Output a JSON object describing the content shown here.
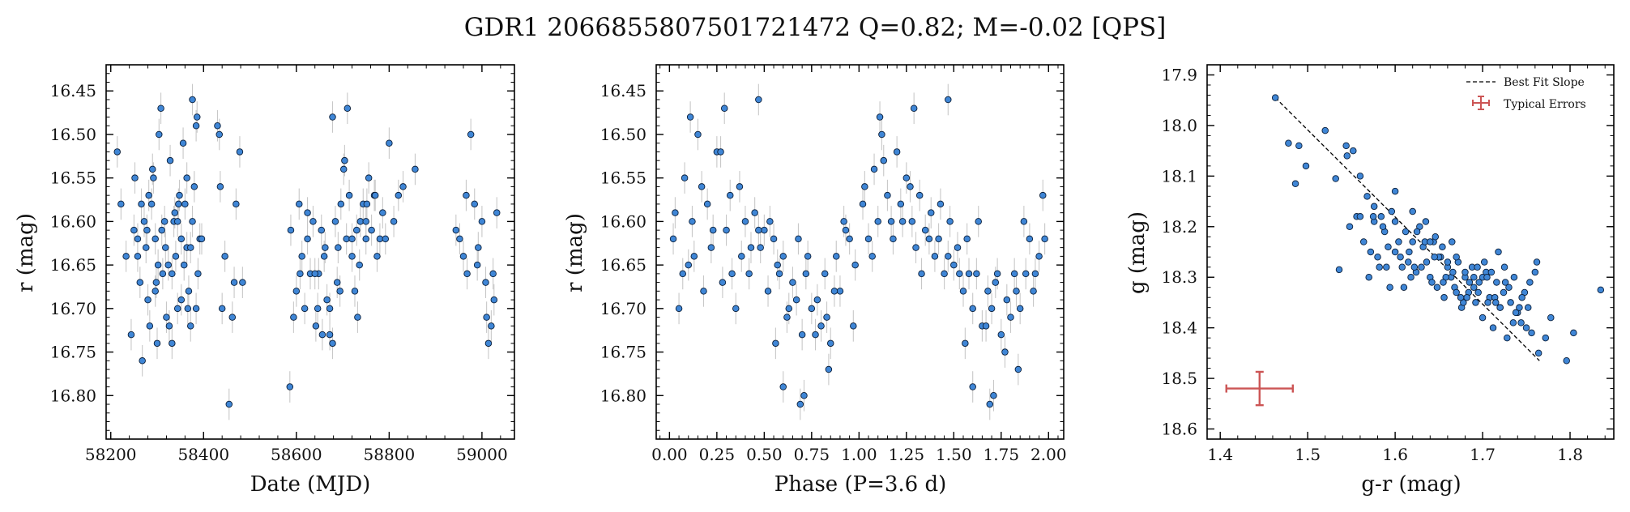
{
  "figure": {
    "title": "GDR1 2066855807501721472  Q=0.82; M=-0.02 [QPS]"
  },
  "colors": {
    "point_fill": "#3f86d6",
    "point_edge": "#0b1f3a",
    "errorbar": "#c8c8c8",
    "typical_error": "#cc5555",
    "fit_line": "#000000"
  },
  "chart_data": [
    {
      "type": "scatter",
      "xlabel": "Date (MJD)",
      "ylabel": "r (mag)",
      "xlim": [
        58190,
        59070
      ],
      "ylim": [
        16.85,
        16.42
      ],
      "xticks": [
        58200,
        58400,
        58600,
        58800,
        59000
      ],
      "yticks": [
        16.45,
        16.5,
        16.55,
        16.6,
        16.65,
        16.7,
        16.75,
        16.8
      ],
      "ytick_labels": [
        "16.45",
        "16.50",
        "16.55",
        "16.60",
        "16.65",
        "16.70",
        "16.75",
        "16.80"
      ],
      "y_inverted": true,
      "grid": false,
      "y_error": 0.018,
      "x": [
        58214,
        58222,
        58233,
        58244,
        58252,
        58258,
        58263,
        58268,
        58272,
        58276,
        58280,
        58284,
        58288,
        58292,
        58296,
        58300,
        58304,
        58308,
        58312,
        58316,
        58320,
        58324,
        58328,
        58332,
        58336,
        58340,
        58344,
        58348,
        58352,
        58356,
        58360,
        58364,
        58368,
        58372,
        58376,
        58380,
        58384,
        58388,
        58392,
        58430,
        58436,
        58440,
        58446,
        58455,
        58462,
        58470,
        58478,
        58484,
        58250,
        58266,
        58296,
        58318,
        58338,
        58358,
        58376,
        58290,
        58310,
        58332,
        58352,
        58372,
        58396,
        58282,
        58302,
        58326,
        58346,
        58366,
        58386,
        58258,
        58278,
        58298,
        58344,
        58364,
        58384,
        58434,
        58466,
        58588,
        58594,
        58600,
        58606,
        58612,
        58618,
        58624,
        58630,
        58636,
        58642,
        58648,
        58654,
        58660,
        58666,
        58672,
        58678,
        58684,
        58690,
        58696,
        58702,
        58708,
        58714,
        58720,
        58726,
        58732,
        58738,
        58744,
        58750,
        58756,
        58762,
        58768,
        58774,
        58780,
        58786,
        58792,
        58800,
        58810,
        58820,
        58830,
        58856,
        58640,
        58656,
        58672,
        58688,
        58704,
        58720,
        58736,
        58752,
        58608,
        58624,
        58646,
        58662,
        58678,
        58694,
        58710,
        58730,
        58750,
        58770,
        58586,
        58944,
        58952,
        58960,
        58968,
        58976,
        58984,
        58992,
        59000,
        59008,
        59014,
        59020,
        59026,
        59032,
        58966,
        58990,
        59010,
        59024
      ],
      "y": [
        16.52,
        16.58,
        16.64,
        16.73,
        16.55,
        16.62,
        16.67,
        16.76,
        16.6,
        16.63,
        16.69,
        16.72,
        16.58,
        16.55,
        16.62,
        16.74,
        16.5,
        16.47,
        16.66,
        16.6,
        16.71,
        16.65,
        16.53,
        16.74,
        16.6,
        16.64,
        16.7,
        16.57,
        16.62,
        16.51,
        16.58,
        16.63,
        16.68,
        16.72,
        16.6,
        16.56,
        16.49,
        16.66,
        16.62,
        16.49,
        16.56,
        16.7,
        16.64,
        16.81,
        16.71,
        16.58,
        16.52,
        16.67,
        16.61,
        16.58,
        16.68,
        16.63,
        16.59,
        16.65,
        16.46,
        16.54,
        16.61,
        16.66,
        16.69,
        16.63,
        16.62,
        16.57,
        16.65,
        16.72,
        16.58,
        16.7,
        16.48,
        16.64,
        16.61,
        16.67,
        16.6,
        16.55,
        16.7,
        16.5,
        16.67,
        16.61,
        16.71,
        16.68,
        16.58,
        16.64,
        16.7,
        16.62,
        16.66,
        16.6,
        16.72,
        16.66,
        16.61,
        16.64,
        16.69,
        16.73,
        16.48,
        16.6,
        16.63,
        16.58,
        16.54,
        16.62,
        16.57,
        16.64,
        16.68,
        16.71,
        16.6,
        16.58,
        16.62,
        16.55,
        16.61,
        16.57,
        16.64,
        16.62,
        16.59,
        16.62,
        16.51,
        16.6,
        16.57,
        16.56,
        16.54,
        16.66,
        16.73,
        16.7,
        16.67,
        16.53,
        16.62,
        16.65,
        16.58,
        16.66,
        16.59,
        16.7,
        16.63,
        16.74,
        16.68,
        16.47,
        16.61,
        16.6,
        16.57,
        16.79,
        16.61,
        16.62,
        16.64,
        16.66,
        16.5,
        16.58,
        16.63,
        16.6,
        16.67,
        16.74,
        16.72,
        16.69,
        16.59,
        16.57,
        16.65,
        16.71,
        16.66
      ],
      "series_name": ""
    },
    {
      "type": "scatter",
      "xlabel": "Phase (P=3.6 d)",
      "ylabel": "r (mag)",
      "xlim": [
        -0.07,
        2.08
      ],
      "ylim": [
        16.85,
        16.42
      ],
      "xticks": [
        0,
        0.25,
        0.5,
        0.75,
        1.0,
        1.25,
        1.5,
        1.75,
        2.0
      ],
      "xtick_labels": [
        "0.00",
        "0.25",
        "0.50",
        "0.75",
        "1.00",
        "1.25",
        "1.50",
        "1.75",
        "2.00"
      ],
      "yticks": [
        16.45,
        16.5,
        16.55,
        16.6,
        16.65,
        16.7,
        16.75,
        16.8
      ],
      "ytick_labels": [
        "16.45",
        "16.50",
        "16.55",
        "16.60",
        "16.65",
        "16.70",
        "16.75",
        "16.80"
      ],
      "y_inverted": true,
      "grid": false,
      "y_error": 0.018,
      "x": [
        0.02,
        0.05,
        0.08,
        0.1,
        0.12,
        0.15,
        0.18,
        0.2,
        0.22,
        0.25,
        0.28,
        0.3,
        0.32,
        0.35,
        0.38,
        0.4,
        0.42,
        0.45,
        0.48,
        0.5,
        0.52,
        0.55,
        0.58,
        0.6,
        0.62,
        0.65,
        0.68,
        0.7,
        0.72,
        0.75,
        0.78,
        0.8,
        0.82,
        0.85,
        0.88,
        0.9,
        0.92,
        0.95,
        0.98,
        1.02,
        1.05,
        1.08,
        1.1,
        1.12,
        1.15,
        1.18,
        1.2,
        1.22,
        1.25,
        1.28,
        1.3,
        1.32,
        1.35,
        1.38,
        1.4,
        1.42,
        1.45,
        1.48,
        1.5,
        1.52,
        1.55,
        1.58,
        1.6,
        1.62,
        1.65,
        1.68,
        1.7,
        1.72,
        1.75,
        1.78,
        1.8,
        1.82,
        1.85,
        1.88,
        1.9,
        1.92,
        1.95,
        1.98,
        0.03,
        0.07,
        0.13,
        0.17,
        0.23,
        0.27,
        0.33,
        0.37,
        0.43,
        0.47,
        0.53,
        0.57,
        0.63,
        0.67,
        0.73,
        0.77,
        0.83,
        0.87,
        0.93,
        0.97,
        1.03,
        1.07,
        1.13,
        1.17,
        1.23,
        1.27,
        1.33,
        1.37,
        1.43,
        1.47,
        1.53,
        1.57,
        1.63,
        1.67,
        1.73,
        1.77,
        1.83,
        1.87,
        1.93,
        1.97,
        0.69,
        0.71,
        1.69,
        1.71,
        0.47,
        1.47,
        0.6,
        0.84,
        1.6,
        1.84,
        0.11,
        0.29,
        1.11,
        1.29,
        0.56,
        1.56
      ],
      "y": [
        16.62,
        16.7,
        16.55,
        16.65,
        16.6,
        16.5,
        16.68,
        16.58,
        16.63,
        16.52,
        16.67,
        16.61,
        16.57,
        16.7,
        16.64,
        16.6,
        16.66,
        16.59,
        16.63,
        16.61,
        16.68,
        16.62,
        16.66,
        16.64,
        16.71,
        16.67,
        16.62,
        16.73,
        16.66,
        16.7,
        16.69,
        16.72,
        16.66,
        16.74,
        16.64,
        16.68,
        16.6,
        16.62,
        16.65,
        16.58,
        16.62,
        16.54,
        16.6,
        16.5,
        16.57,
        16.62,
        16.52,
        16.58,
        16.55,
        16.6,
        16.63,
        16.57,
        16.61,
        16.59,
        16.64,
        16.62,
        16.66,
        16.6,
        16.65,
        16.63,
        16.68,
        16.66,
        16.7,
        16.66,
        16.72,
        16.68,
        16.7,
        16.67,
        16.73,
        16.69,
        16.71,
        16.66,
        16.7,
        16.66,
        16.62,
        16.68,
        16.64,
        16.62,
        16.59,
        16.66,
        16.64,
        16.56,
        16.61,
        16.52,
        16.66,
        16.56,
        16.63,
        16.61,
        16.6,
        16.65,
        16.7,
        16.69,
        16.64,
        16.73,
        16.71,
        16.68,
        16.61,
        16.72,
        16.56,
        16.64,
        16.53,
        16.6,
        16.6,
        16.56,
        16.66,
        16.62,
        16.58,
        16.64,
        16.66,
        16.62,
        16.6,
        16.72,
        16.66,
        16.75,
        16.68,
        16.6,
        16.66,
        16.57,
        16.81,
        16.8,
        16.81,
        16.8,
        16.46,
        16.46,
        16.79,
        16.77,
        16.79,
        16.77,
        16.48,
        16.47,
        16.48,
        16.47,
        16.74,
        16.74
      ],
      "series_name": ""
    },
    {
      "type": "scatter",
      "xlabel": "g-r (mag)",
      "ylabel": "g (mag)",
      "xlim": [
        1.385,
        1.85
      ],
      "ylim": [
        18.62,
        17.88
      ],
      "xticks": [
        1.4,
        1.5,
        1.6,
        1.7,
        1.8
      ],
      "xtick_labels": [
        "1.4",
        "1.5",
        "1.6",
        "1.7",
        "1.8"
      ],
      "yticks": [
        17.9,
        18.0,
        18.1,
        18.2,
        18.3,
        18.4,
        18.5,
        18.6
      ],
      "ytick_labels": [
        "17.9",
        "18.0",
        "18.1",
        "18.2",
        "18.3",
        "18.4",
        "18.5",
        "18.6"
      ],
      "y_inverted": true,
      "grid": false,
      "x": [
        1.463,
        1.478,
        1.486,
        1.49,
        1.498,
        1.52,
        1.532,
        1.536,
        1.544,
        1.548,
        1.552,
        1.556,
        1.56,
        1.564,
        1.568,
        1.572,
        1.576,
        1.58,
        1.584,
        1.588,
        1.592,
        1.596,
        1.6,
        1.604,
        1.608,
        1.612,
        1.616,
        1.62,
        1.624,
        1.628,
        1.632,
        1.636,
        1.64,
        1.644,
        1.648,
        1.652,
        1.656,
        1.66,
        1.664,
        1.668,
        1.672,
        1.676,
        1.68,
        1.684,
        1.688,
        1.692,
        1.696,
        1.7,
        1.704,
        1.708,
        1.712,
        1.716,
        1.72,
        1.724,
        1.728,
        1.732,
        1.736,
        1.74,
        1.744,
        1.748,
        1.752,
        1.756,
        1.76,
        1.764,
        1.772,
        1.778,
        1.796,
        1.804,
        1.835,
        1.57,
        1.582,
        1.594,
        1.606,
        1.618,
        1.63,
        1.642,
        1.654,
        1.666,
        1.678,
        1.69,
        1.702,
        1.714,
        1.726,
        1.738,
        1.75,
        1.762,
        1.61,
        1.622,
        1.634,
        1.646,
        1.658,
        1.67,
        1.682,
        1.694,
        1.706,
        1.718,
        1.73,
        1.742,
        1.754,
        1.6,
        1.64,
        1.66,
        1.68,
        1.7,
        1.72,
        1.65,
        1.67,
        1.69,
        1.71,
        1.56,
        1.575,
        1.545,
        1.6,
        1.615,
        1.625,
        1.635,
        1.645,
        1.655,
        1.665,
        1.675,
        1.685,
        1.695,
        1.705,
        1.715,
        1.725,
        1.735,
        1.745,
        1.59,
        1.62,
        1.576,
        1.586
      ],
      "y": [
        17.945,
        18.035,
        18.115,
        18.04,
        18.08,
        18.01,
        18.105,
        18.285,
        18.04,
        18.2,
        18.05,
        18.18,
        18.1,
        18.23,
        18.14,
        18.25,
        18.19,
        18.26,
        18.18,
        18.21,
        18.24,
        18.17,
        18.19,
        18.23,
        18.28,
        18.21,
        18.25,
        18.17,
        18.29,
        18.2,
        18.24,
        18.27,
        18.3,
        18.23,
        18.32,
        18.26,
        18.34,
        18.28,
        18.3,
        18.32,
        18.27,
        18.36,
        18.3,
        18.33,
        18.28,
        18.35,
        18.31,
        18.38,
        18.29,
        18.34,
        18.4,
        18.31,
        18.36,
        18.33,
        18.42,
        18.35,
        18.3,
        18.37,
        18.39,
        18.33,
        18.36,
        18.41,
        18.29,
        18.45,
        18.42,
        18.38,
        18.465,
        18.41,
        18.325,
        18.3,
        18.28,
        18.32,
        18.26,
        18.3,
        18.28,
        18.31,
        18.24,
        18.29,
        18.35,
        18.3,
        18.27,
        18.34,
        18.31,
        18.37,
        18.4,
        18.27,
        18.32,
        18.28,
        18.23,
        18.22,
        18.3,
        18.26,
        18.34,
        18.28,
        18.35,
        18.25,
        18.32,
        18.36,
        18.31,
        18.13,
        18.23,
        18.27,
        18.29,
        18.3,
        18.36,
        18.26,
        18.33,
        18.32,
        18.29,
        18.18,
        18.18,
        18.06,
        18.25,
        18.27,
        18.21,
        18.19,
        18.26,
        18.31,
        18.23,
        18.34,
        18.31,
        18.33,
        18.3,
        18.35,
        18.28,
        18.39,
        18.34,
        18.28,
        18.23,
        18.16,
        18.2
      ],
      "fit_line": {
        "x": [
          1.463,
          1.765
        ],
        "y": [
          17.945,
          18.465
        ]
      },
      "typical_error": {
        "x": 1.445,
        "y": 18.52,
        "xerr": 0.038,
        "yerr": 0.033
      },
      "legend": {
        "placement": "upper-right",
        "entries": [
          {
            "label": "Best Fit Slope",
            "style": "dashed-line"
          },
          {
            "label": "Typical Errors",
            "style": "errorbar"
          }
        ]
      }
    }
  ]
}
